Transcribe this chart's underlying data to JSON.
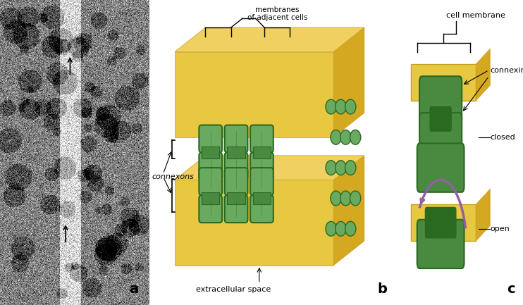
{
  "fig_width": 7.42,
  "fig_height": 4.33,
  "dpi": 100,
  "bg_color": "#ffffff",
  "panel_a_label": "a",
  "panel_b_label": "b",
  "panel_c_label": "c",
  "text_membranes": "membranes\nof adjacent cells",
  "text_connexons": "connexons",
  "text_extracellular": "extracellular space",
  "text_cell_membrane": "cell membrane",
  "text_connexins": "connexins",
  "text_closed": "closed",
  "text_open": "open",
  "yellow_color": "#E8C840",
  "yellow_light": "#F5E070",
  "yellow_dark": "#C8A020",
  "green_color": "#4A8A40",
  "green_light": "#6AAA60",
  "green_dark": "#2A6A20",
  "purple_color": "#9060A0",
  "panel_divider1": 0.285,
  "panel_divider2": 0.775
}
